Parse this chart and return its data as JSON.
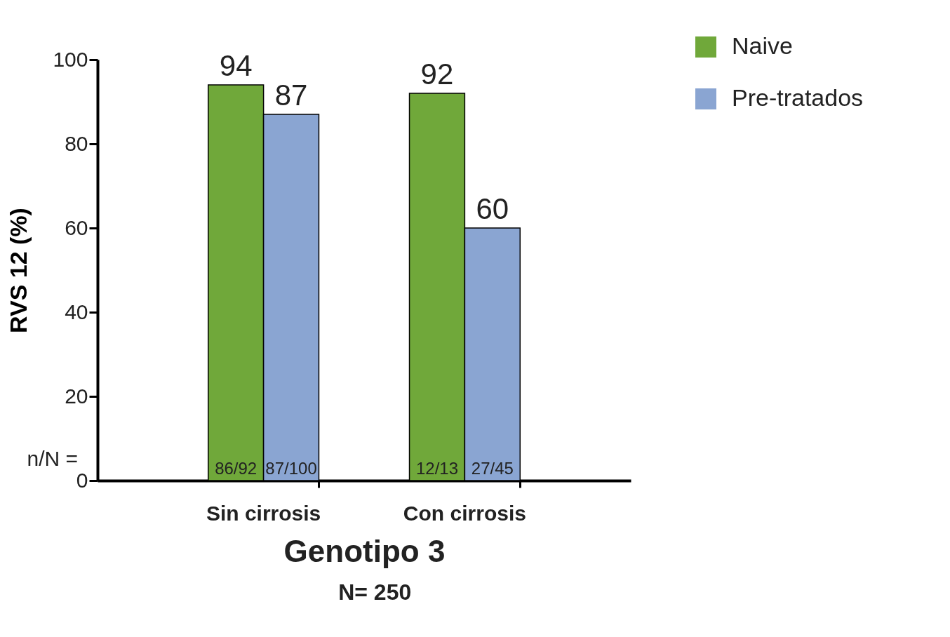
{
  "chart_data": {
    "type": "bar",
    "categories": [
      "Sin cirrosis",
      "Con cirrosis"
    ],
    "series": [
      {
        "name": "Naive",
        "color": "#70a83a",
        "values": [
          94,
          92
        ],
        "value_labels": [
          "94",
          "92"
        ]
      },
      {
        "name": "Pre-tratados",
        "color": "#8aa5d2",
        "values": [
          87,
          60
        ],
        "value_labels": [
          "87",
          "60"
        ]
      }
    ],
    "ylabel": "RVS 12 (%)",
    "xlabel": "Genotipo 3",
    "annotations": [
      "n/N =",
      "N= 250",
      {
        "text": "86/92",
        "x": "Sin cirrosis",
        "y": 0
      },
      {
        "text": "87/100",
        "x": "Sin cirrosis",
        "y": 0
      },
      {
        "text": "12/13",
        "x": "Con cirrosis",
        "y": 0
      },
      {
        "text": "27/45",
        "x": "Con cirrosis",
        "y": 0
      }
    ],
    "ylim": [
      0,
      100
    ],
    "yticks": [
      0,
      20,
      40,
      60,
      80,
      100
    ],
    "grid": false,
    "legend": "top right"
  }
}
